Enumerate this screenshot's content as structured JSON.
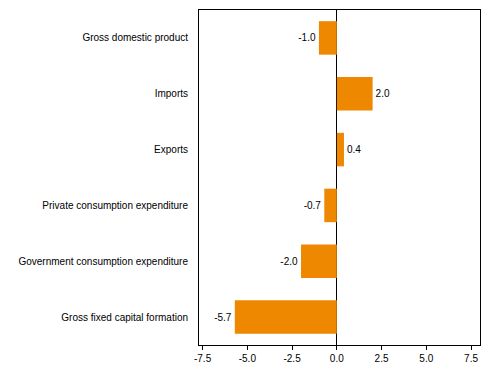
{
  "chart_data": {
    "type": "bar",
    "orientation": "horizontal",
    "categories": [
      "Gross domestic product",
      "Imports",
      "Exports",
      "Private consumption expenditure",
      "Government consumption expenditure",
      "Gross fixed capital formation"
    ],
    "values": [
      -1.0,
      2.0,
      0.4,
      -0.7,
      -2.0,
      -5.7
    ],
    "value_labels": [
      "-1.0",
      "2.0",
      "0.4",
      "-0.7",
      "-2.0",
      "-5.7"
    ],
    "data_labels": true,
    "color": "#ee8800",
    "xlim": [
      -7.7,
      8.0
    ],
    "xticks": [
      -7.5,
      {
        "value": -5,
        "label": "-5.0"
      },
      -2.5,
      {
        "value": 0,
        "label": "0.0"
      },
      2.5,
      {
        "value": 5,
        "label": "5.0"
      },
      7.5
    ],
    "grid": false
  }
}
